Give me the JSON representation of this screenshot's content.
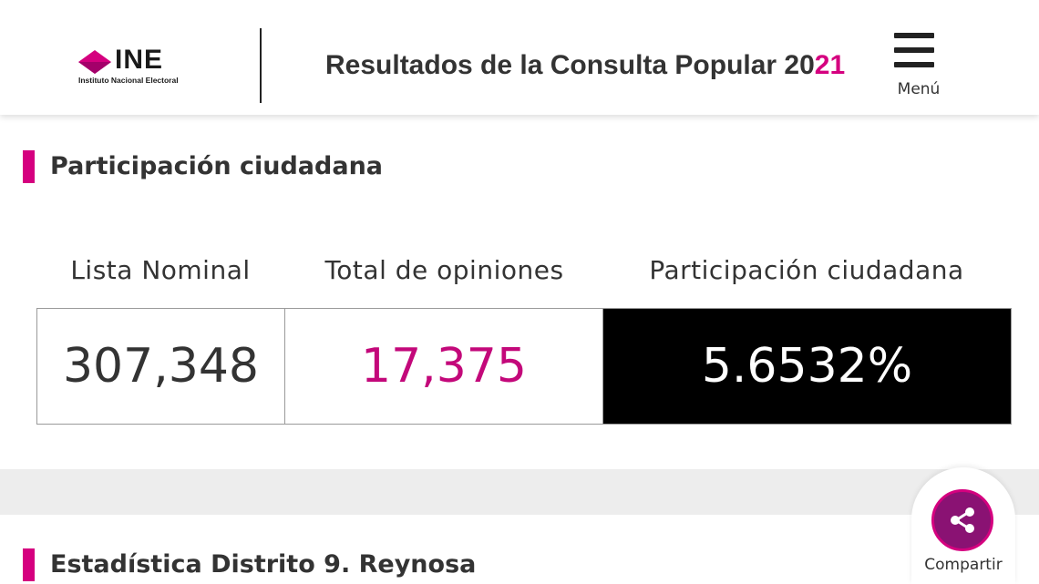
{
  "header": {
    "logo_text": "INE",
    "logo_subtitle": "Instituto Nacional Electoral",
    "title_main": "Resultados de la Consulta Popular 20",
    "title_accent": "21",
    "menu_label": "Menú"
  },
  "participation": {
    "heading": "Participación ciudadana",
    "labels": {
      "lista_nominal": "Lista Nominal",
      "total_opiniones": "Total de opiniones",
      "participacion": "Participación ciudadana"
    },
    "values": {
      "lista_nominal": "307,348",
      "total_opiniones": "17,375",
      "participacion": "5.6532%"
    }
  },
  "statistics": {
    "heading": "Estadística Distrito 9. Reynosa"
  },
  "share": {
    "label": "Compartir",
    "icon": "share-icon"
  },
  "colors": {
    "accent": "#d5007f",
    "share_button": "#8a1273",
    "text": "#333333",
    "highlight_bg": "#000000"
  }
}
